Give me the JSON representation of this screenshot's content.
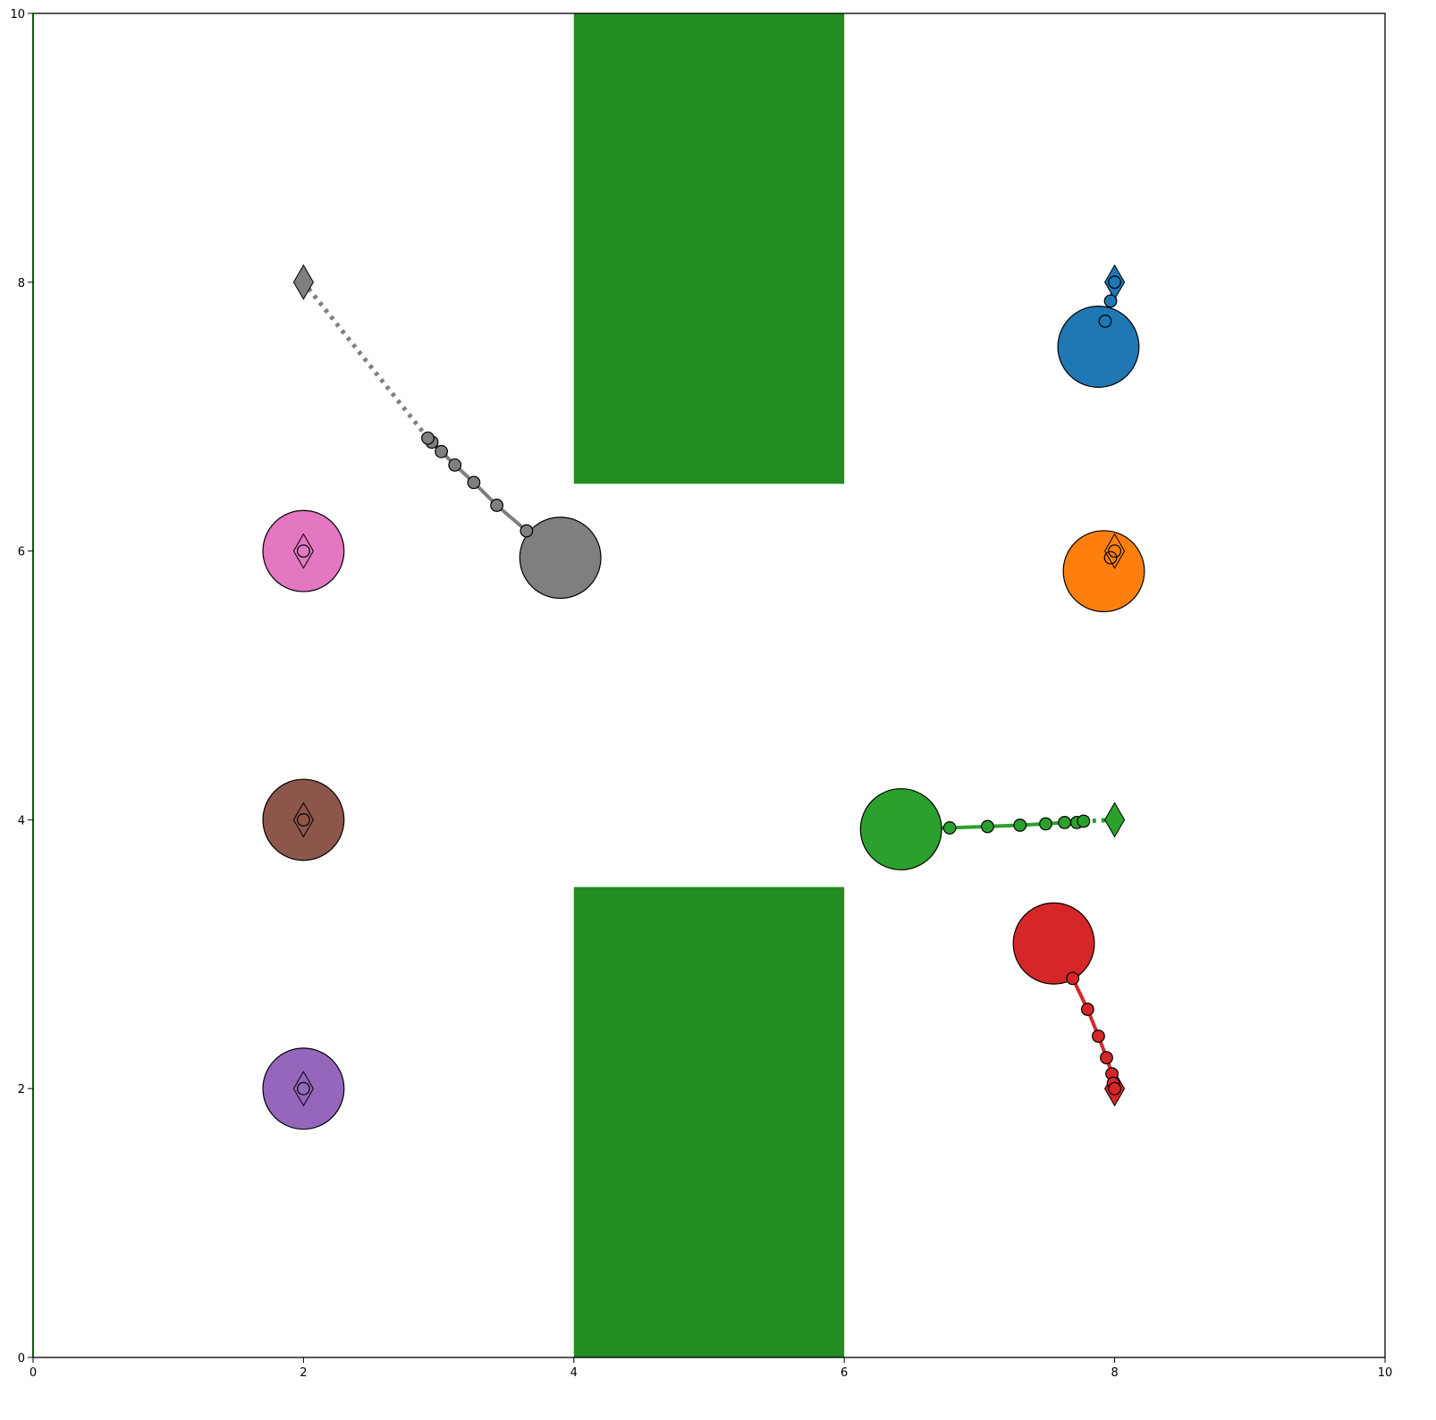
{
  "chart_data": {
    "type": "scatter",
    "title": "",
    "xlabel": "",
    "ylabel": "",
    "xlim": [
      0,
      10
    ],
    "ylim": [
      0,
      10
    ],
    "xticks": [
      "0",
      "2",
      "4",
      "6",
      "8",
      "10"
    ],
    "yticks": [
      "0",
      "2",
      "4",
      "6",
      "8",
      "10"
    ],
    "grid": false,
    "obstacles": [
      {
        "x0": 4,
        "x1": 6,
        "y0": 6.5,
        "y1": 10,
        "color": "#228B22"
      },
      {
        "x0": 4,
        "x1": 6,
        "y0": 0,
        "y1": 3.5,
        "color": "#228B22"
      }
    ],
    "agents": [
      {
        "color": "#1f77b4",
        "goal": [
          8,
          8
        ],
        "position": [
          7.88,
          7.52
        ],
        "trail": [
          [
            7.93,
            7.71
          ],
          [
            7.97,
            7.86
          ],
          [
            8.0,
            8.0
          ]
        ],
        "trail_open": [
          false,
          false,
          false
        ],
        "plan_line": false,
        "goal_outline": false
      },
      {
        "color": "#ff7f0e",
        "goal": [
          8,
          6
        ],
        "position": [
          7.92,
          5.85
        ],
        "trail": [
          [
            7.97,
            5.95
          ],
          [
            8.0,
            6.0
          ]
        ],
        "trail_open": [
          true,
          true
        ],
        "plan_line": false,
        "goal_outline": true
      },
      {
        "color": "#2ca02c",
        "goal": [
          8,
          4
        ],
        "position": [
          6.42,
          3.93
        ],
        "trail": [
          [
            6.78,
            3.94
          ],
          [
            7.06,
            3.95
          ],
          [
            7.3,
            3.96
          ],
          [
            7.49,
            3.97
          ],
          [
            7.63,
            3.98
          ],
          [
            7.72,
            3.98
          ],
          [
            7.77,
            3.99
          ]
        ],
        "trail_open": [
          false,
          false,
          false,
          false,
          false,
          false,
          false
        ],
        "plan_line": true,
        "goal_outline": false
      },
      {
        "color": "#d62728",
        "goal": [
          8,
          2
        ],
        "position": [
          7.55,
          3.08
        ],
        "trail": [
          [
            7.69,
            2.82
          ],
          [
            7.8,
            2.59
          ],
          [
            7.88,
            2.39
          ],
          [
            7.94,
            2.23
          ],
          [
            7.98,
            2.11
          ],
          [
            7.99,
            2.04
          ],
          [
            8.0,
            2.0
          ]
        ],
        "trail_open": [
          false,
          false,
          false,
          false,
          false,
          false,
          false
        ],
        "plan_line": false,
        "goal_outline": false
      },
      {
        "color": "#9467bd",
        "goal": [
          2,
          2
        ],
        "position": [
          2,
          2
        ],
        "trail": [
          [
            2,
            2
          ]
        ],
        "trail_open": [
          true
        ],
        "plan_line": false,
        "goal_outline": true
      },
      {
        "color": "#8c564b",
        "goal": [
          2,
          4
        ],
        "position": [
          2,
          4
        ],
        "trail": [
          [
            2,
            4
          ]
        ],
        "trail_open": [
          true
        ],
        "plan_line": false,
        "goal_outline": true
      },
      {
        "color": "#e377c2",
        "goal": [
          2,
          6
        ],
        "position": [
          2,
          6
        ],
        "trail": [
          [
            2,
            6
          ]
        ],
        "trail_open": [
          true
        ],
        "plan_line": false,
        "goal_outline": true
      },
      {
        "color": "#7f7f7f",
        "goal": [
          2,
          8
        ],
        "position": [
          3.9,
          5.95
        ],
        "trail": [
          [
            3.65,
            6.15
          ],
          [
            3.43,
            6.34
          ],
          [
            3.26,
            6.51
          ],
          [
            3.12,
            6.64
          ],
          [
            3.02,
            6.74
          ],
          [
            2.95,
            6.81
          ],
          [
            2.92,
            6.84
          ]
        ],
        "trail_open": [
          false,
          false,
          false,
          false,
          false,
          false,
          false
        ],
        "plan_line": true,
        "goal_outline": false
      }
    ]
  }
}
